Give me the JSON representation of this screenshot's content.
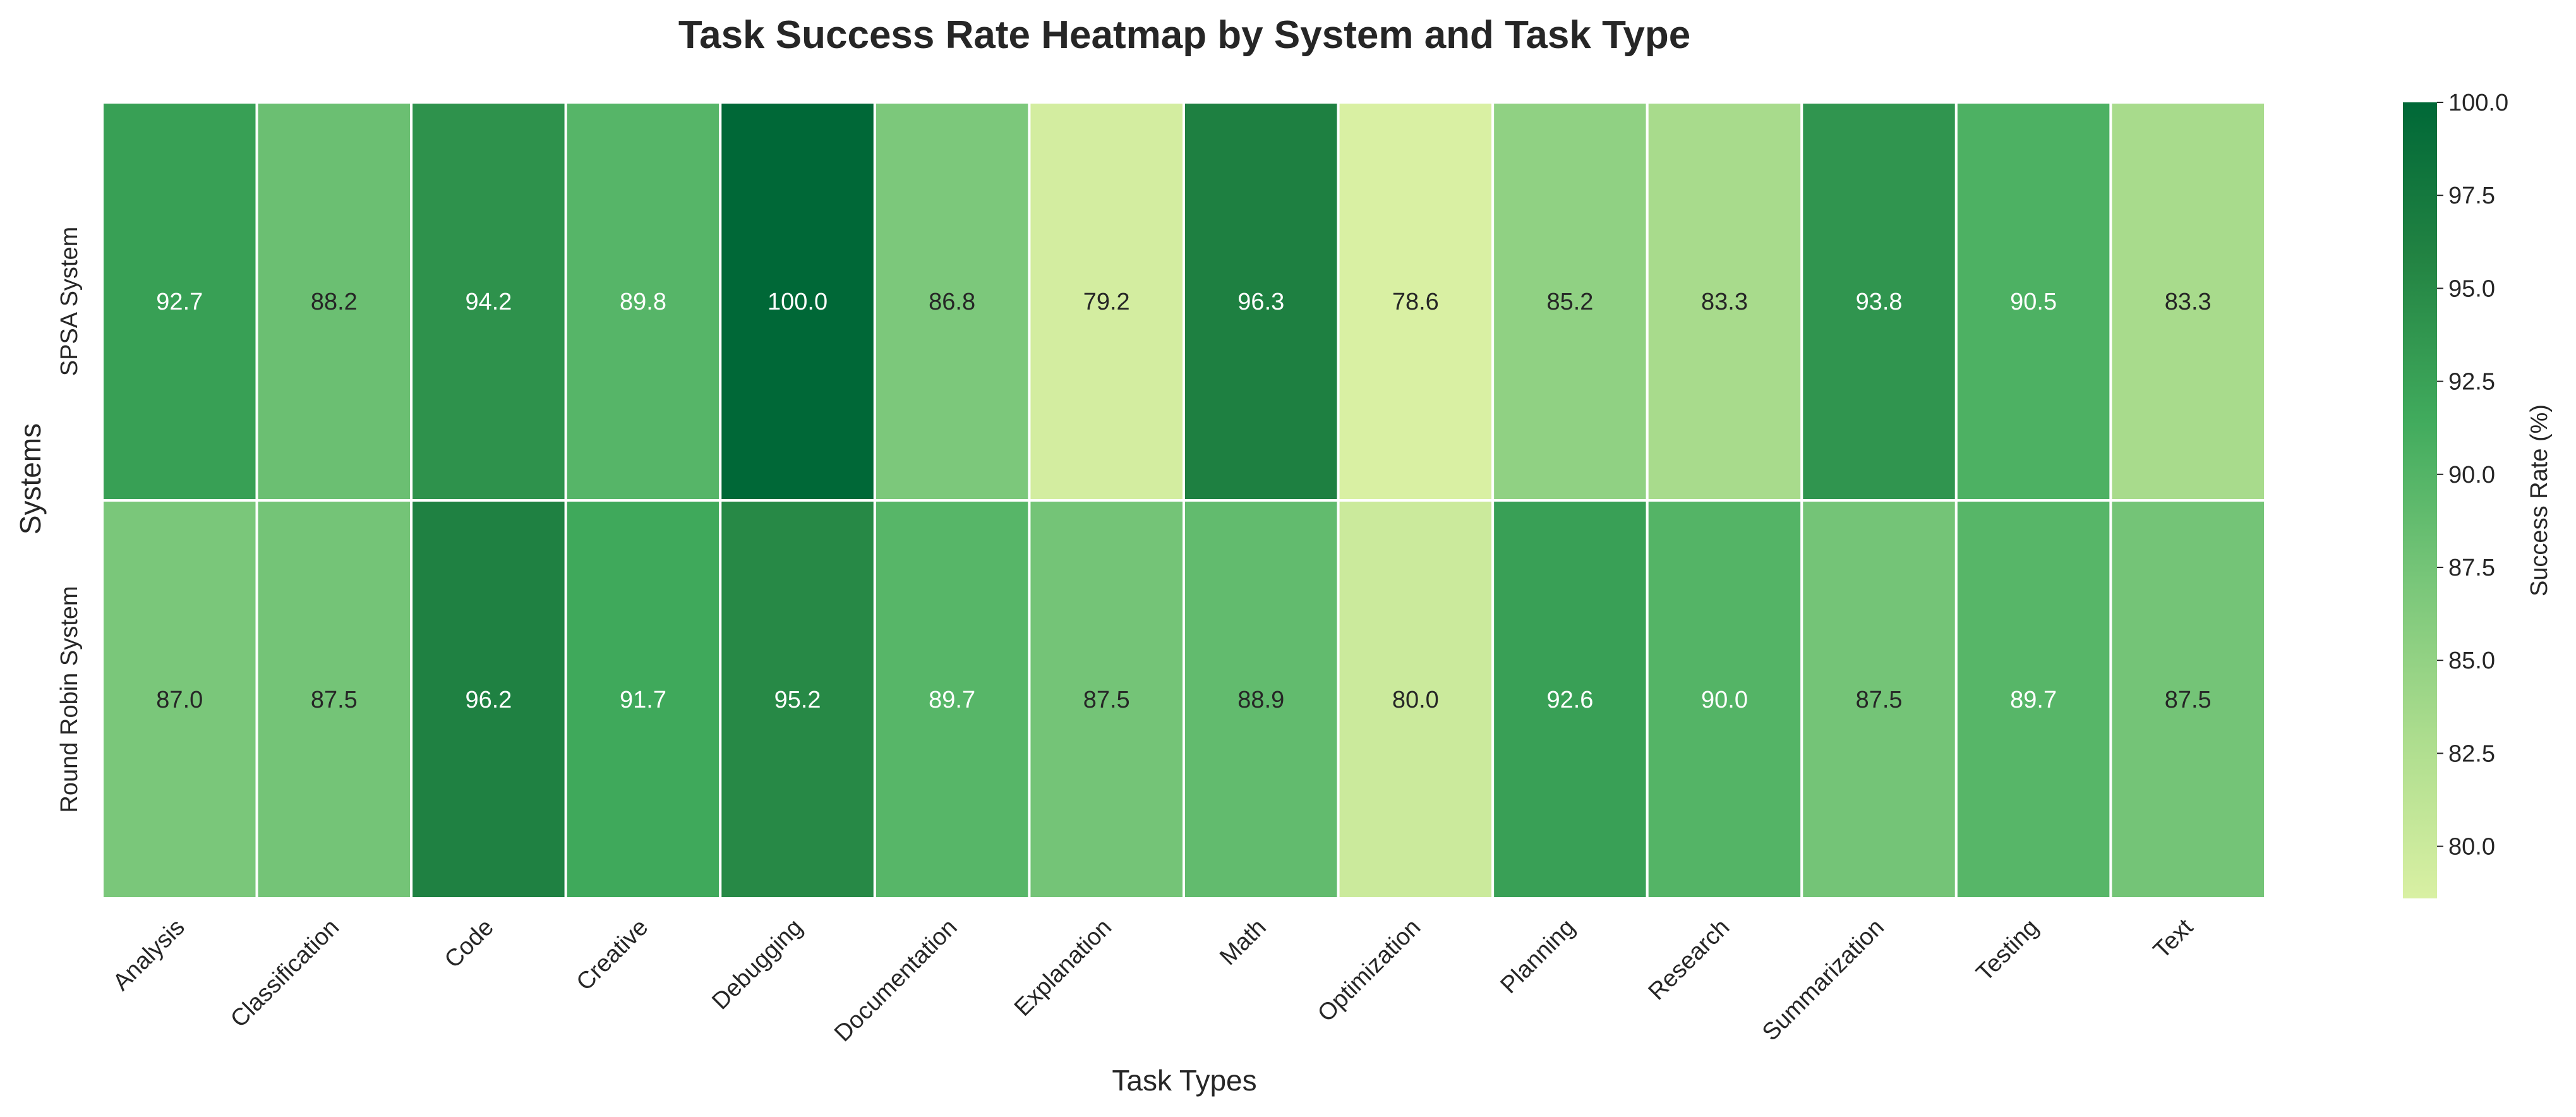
{
  "chart_data": {
    "type": "heatmap",
    "title": "Task Success Rate Heatmap by System and Task Type",
    "xlabel": "Task Types",
    "ylabel": "Systems",
    "x_categories": [
      "Analysis",
      "Classification",
      "Code",
      "Creative",
      "Debugging",
      "Documentation",
      "Explanation",
      "Math",
      "Optimization",
      "Planning",
      "Research",
      "Summarization",
      "Testing",
      "Text"
    ],
    "y_categories": [
      "SPSA System",
      "Round Robin System"
    ],
    "values": [
      [
        92.7,
        88.2,
        94.2,
        89.8,
        100.0,
        86.8,
        79.2,
        96.3,
        78.6,
        85.2,
        83.3,
        93.8,
        90.5,
        83.3
      ],
      [
        87.0,
        87.5,
        96.2,
        91.7,
        95.2,
        89.7,
        87.5,
        88.9,
        80.0,
        92.6,
        90.0,
        87.5,
        89.7,
        87.5
      ]
    ],
    "value_format": "0.1f",
    "colorbar": {
      "label": "Success Rate (%)",
      "min": 78.6,
      "max": 100.0,
      "ticks": [
        "80.0",
        "82.5",
        "85.0",
        "87.5",
        "90.0",
        "92.5",
        "95.0",
        "97.5",
        "100.0"
      ],
      "colormap": "YlGn",
      "color_stops": [
        "#d9f0a3",
        "#addd8e",
        "#78c679",
        "#41ab5d",
        "#238443",
        "#006837"
      ]
    }
  }
}
